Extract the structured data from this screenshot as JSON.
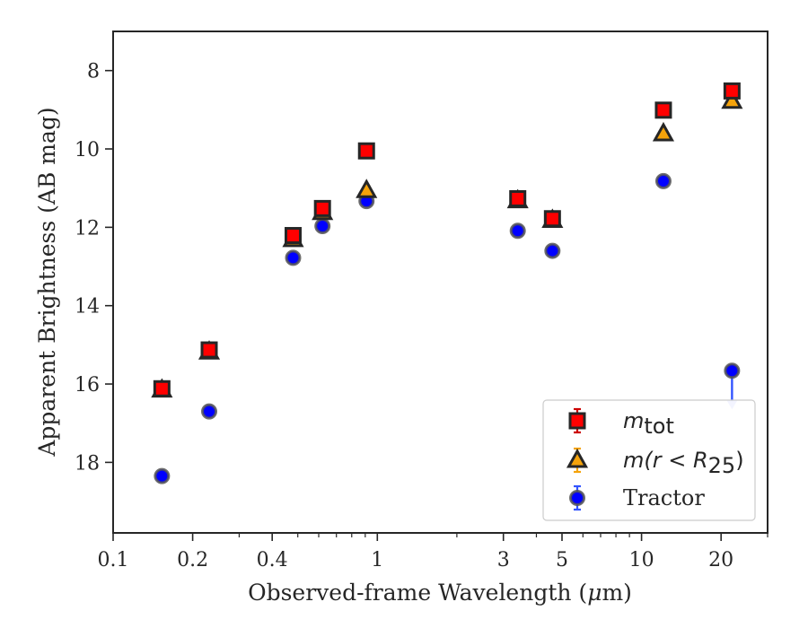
{
  "chart_data": {
    "type": "scatter",
    "xlabel": "Observed-frame Wavelength (μm)",
    "xlabel_parts": {
      "pre": "Observed-frame Wavelength (",
      "mu": "μ",
      "post": "m)"
    },
    "ylabel": "Apparent Brightness (AB mag)",
    "xscale": "log",
    "xlim": [
      0.1,
      30
    ],
    "ylim": [
      19.8,
      7.0
    ],
    "y_inverted": true,
    "grid": false,
    "legend_position": "lower-right",
    "x_ticks": [
      {
        "value": 0.1,
        "label": "0.1"
      },
      {
        "value": 0.2,
        "label": "0.2"
      },
      {
        "value": 0.4,
        "label": "0.4"
      },
      {
        "value": 1,
        "label": "1"
      },
      {
        "value": 3,
        "label": "3"
      },
      {
        "value": 5,
        "label": "5"
      },
      {
        "value": 10,
        "label": "10"
      },
      {
        "value": 20,
        "label": "20"
      }
    ],
    "y_ticks": [
      {
        "value": 8,
        "label": "8"
      },
      {
        "value": 10,
        "label": "10"
      },
      {
        "value": 12,
        "label": "12"
      },
      {
        "value": 14,
        "label": "14"
      },
      {
        "value": 16,
        "label": "16"
      },
      {
        "value": 18,
        "label": "18"
      }
    ],
    "series": [
      {
        "name": "m_tot",
        "legend_base": "m",
        "legend_sub": "tot",
        "marker": "square",
        "fill": "#ff0000",
        "edge": "#262626",
        "errcolor": "#cc0000",
        "x": [
          0.153,
          0.231,
          0.48,
          0.62,
          0.91,
          3.4,
          4.6,
          12.1,
          22.0
        ],
        "y": [
          16.12,
          15.13,
          12.21,
          11.52,
          10.05,
          11.27,
          11.78,
          9.01,
          8.52
        ]
      },
      {
        "name": "m(r < R_25)",
        "legend_base": "m(r < R",
        "legend_sub": "25",
        "legend_close": ")",
        "marker": "triangle",
        "fill": "#f5a30a",
        "edge": "#262626",
        "errcolor": "#f5a30a",
        "x": [
          0.153,
          0.231,
          0.48,
          0.62,
          0.91,
          3.4,
          4.6,
          12.1,
          22.0
        ],
        "y": [
          16.15,
          15.18,
          12.31,
          11.62,
          11.06,
          11.32,
          11.82,
          9.61,
          8.78
        ]
      },
      {
        "name": "Tractor",
        "marker": "circle",
        "fill": "#0000ff",
        "edge": "#555555",
        "errcolor": "#3355ff",
        "upper_limit_index": 8,
        "x": [
          0.153,
          0.231,
          0.48,
          0.62,
          0.91,
          3.4,
          4.6,
          12.1,
          22.0
        ],
        "y": [
          18.35,
          16.7,
          12.78,
          11.97,
          11.33,
          12.09,
          12.6,
          10.82,
          15.66
        ]
      }
    ]
  }
}
